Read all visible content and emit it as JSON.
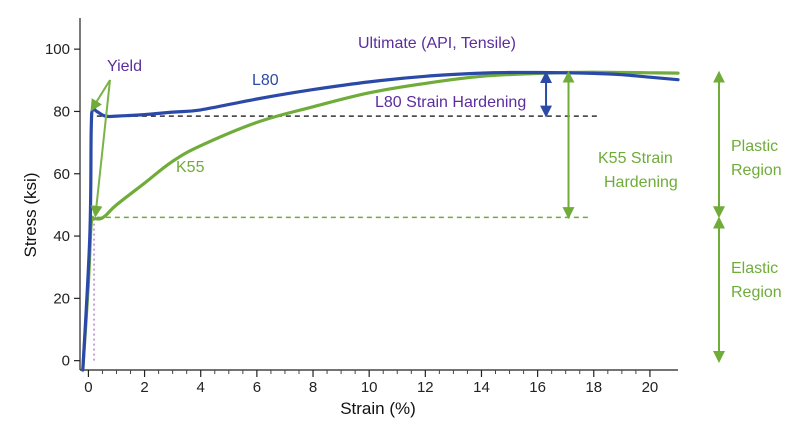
{
  "chart_data": {
    "type": "line",
    "title": "",
    "xlabel": "Strain (%)",
    "ylabel": "Stress (ksi)",
    "xlim": [
      -0.3,
      21
    ],
    "ylim": [
      -3,
      110
    ],
    "xticks": [
      0,
      2,
      4,
      6,
      8,
      10,
      12,
      14,
      16,
      18,
      20
    ],
    "yticks": [
      0,
      20,
      40,
      60,
      80,
      100
    ],
    "grid": false,
    "legend": "none",
    "series": [
      {
        "name": "L80",
        "color": "#2b4aa8",
        "x": [
          -0.2,
          0.05,
          0.1,
          0.15,
          0.3,
          0.6,
          1,
          2,
          3,
          4,
          6,
          8,
          10,
          12,
          14,
          15,
          16,
          17,
          18,
          19,
          20,
          21
        ],
        "y": [
          -3,
          40,
          74,
          80.5,
          80,
          78.5,
          78.5,
          79,
          79.8,
          80.5,
          84,
          87,
          89.5,
          91.3,
          92.3,
          92.5,
          92.5,
          92.4,
          92.2,
          91.8,
          91,
          90.2
        ]
      },
      {
        "name": "K55",
        "color": "#6fac3a",
        "x": [
          -0.2,
          0,
          0.1,
          0.2,
          0.4,
          0.6,
          1,
          2,
          3,
          4,
          6,
          8,
          10,
          12,
          14,
          16,
          17,
          18,
          19,
          20,
          21
        ],
        "y": [
          -3,
          25,
          44,
          45.5,
          45.5,
          46.5,
          50,
          57,
          64,
          69,
          76.5,
          81.5,
          86,
          89,
          91.3,
          92.2,
          92.5,
          92.6,
          92.5,
          92.4,
          92.3
        ]
      }
    ],
    "reference_lines": [
      {
        "label": "L80 yield level",
        "y": 78.5,
        "x_range": [
          0.3,
          18.2
        ],
        "color": "#333333",
        "style": "dashed"
      },
      {
        "label": "K55 yield level",
        "y": 46,
        "x_range": [
          0.3,
          17.8
        ],
        "color": "#6fac3a",
        "style": "dashed"
      },
      {
        "label": "yield strain",
        "x": 0.2,
        "y_range": [
          0,
          46
        ],
        "color": "#b07ad0",
        "style": "dotted"
      }
    ],
    "annotations": {
      "yield": "Yield",
      "ultimate": "Ultimate (API, Tensile)",
      "l80_label": "L80",
      "k55_label": "K55",
      "l80_hardening": "L80 Strain Hardening",
      "k55_hardening_line1": "K55 Strain",
      "k55_hardening_line2": "Hardening",
      "plastic_line1": "Plastic",
      "plastic_line2": "Region",
      "elastic_line1": "Elastic",
      "elastic_line2": "Region"
    },
    "annotation_colors": {
      "purple": "#5b2d9e",
      "blue": "#2b4aa8",
      "green": "#6fac3a"
    }
  }
}
